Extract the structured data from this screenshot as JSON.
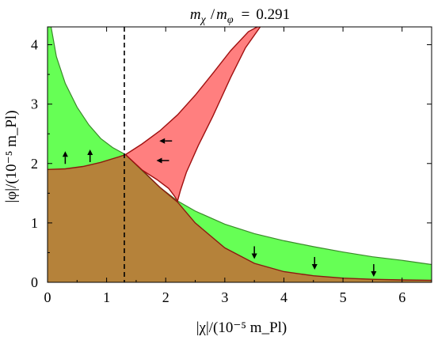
{
  "chart_data": {
    "type": "area",
    "title": "m_χ / m_φ = 0.291",
    "title_parts": {
      "lhs": "m",
      "chi": "χ",
      "slash": "/",
      "phi_m": "m",
      "phi": "φ",
      "eq": "=",
      "value": "0.291"
    },
    "xlabel": "|χ|/(10⁻⁵ m_Pl)",
    "ylabel": "|φ|/(10⁻⁵ m_Pl)",
    "xlim": [
      0,
      6.5
    ],
    "ylim": [
      0,
      4.3
    ],
    "x_ticks": [
      "0",
      "1",
      "2",
      "3",
      "4",
      "5",
      "6"
    ],
    "x_tick_values": [
      0,
      1,
      2,
      3,
      4,
      5,
      6
    ],
    "y_ticks": [
      "0",
      "1",
      "2",
      "3",
      "4"
    ],
    "y_tick_values": [
      0,
      1,
      2,
      3,
      4
    ],
    "grid": false,
    "vertical_dashed_line_x": 1.3,
    "colors": {
      "green_region": "#66ff55",
      "green_stroke": "#3a8a2a",
      "brown_region": "#b5823a",
      "brown_stroke": "#8a1a10",
      "red_region": "#ff7f7f",
      "red_stroke": "#a01010",
      "dashed": "#000000"
    },
    "series": [
      {
        "region": "brown",
        "boundary_upper": {
          "x": [
            0,
            0.3,
            0.6,
            0.9,
            1.2,
            1.32,
            1.6,
            1.9,
            2.2,
            2.5,
            3.0,
            3.5,
            4.0,
            4.5,
            5.0,
            5.5,
            6.0,
            6.5
          ],
          "y": [
            1.9,
            1.91,
            1.95,
            2.02,
            2.11,
            2.15,
            1.89,
            1.6,
            1.35,
            1.0,
            0.58,
            0.32,
            0.18,
            0.11,
            0.07,
            0.05,
            0.04,
            0.035
          ]
        }
      },
      {
        "region": "green",
        "boundary_upper": {
          "x": [
            0.06,
            0.15,
            0.3,
            0.5,
            0.7,
            0.9,
            1.1,
            1.32,
            1.6,
            1.9,
            2.2,
            2.5,
            3.0,
            3.5,
            4.0,
            4.5,
            5.0,
            5.5,
            6.0,
            6.5
          ],
          "y": [
            4.3,
            3.8,
            3.35,
            2.95,
            2.65,
            2.42,
            2.27,
            2.15,
            1.88,
            1.6,
            1.37,
            1.2,
            0.98,
            0.82,
            0.7,
            0.6,
            0.51,
            0.43,
            0.37,
            0.3
          ]
        }
      },
      {
        "region": "red",
        "boundary_upper": {
          "x": [
            1.32,
            1.6,
            1.9,
            2.2,
            2.5,
            2.8,
            3.1,
            3.4,
            3.55
          ],
          "y": [
            2.15,
            2.33,
            2.55,
            2.82,
            3.15,
            3.52,
            3.9,
            4.22,
            4.3
          ]
        },
        "boundary_lower": {
          "x": [
            1.32,
            1.6,
            1.85,
            2.05,
            2.15,
            2.2,
            2.2,
            2.25,
            2.35,
            2.55,
            2.8,
            3.1,
            3.35,
            3.6
          ],
          "y": [
            2.15,
            1.89,
            1.73,
            1.58,
            1.45,
            1.37,
            1.37,
            1.55,
            1.85,
            2.3,
            2.8,
            3.45,
            3.95,
            4.3
          ]
        }
      }
    ],
    "arrows": [
      {
        "x": 0.3,
        "y": 2.1,
        "direction": "up"
      },
      {
        "x": 0.72,
        "y": 2.13,
        "direction": "up"
      },
      {
        "x": 2.0,
        "y": 2.38,
        "direction": "left"
      },
      {
        "x": 1.95,
        "y": 2.05,
        "direction": "left"
      },
      {
        "x": 3.5,
        "y": 0.5,
        "direction": "down"
      },
      {
        "x": 4.52,
        "y": 0.32,
        "direction": "down"
      },
      {
        "x": 5.52,
        "y": 0.2,
        "direction": "down"
      }
    ]
  }
}
